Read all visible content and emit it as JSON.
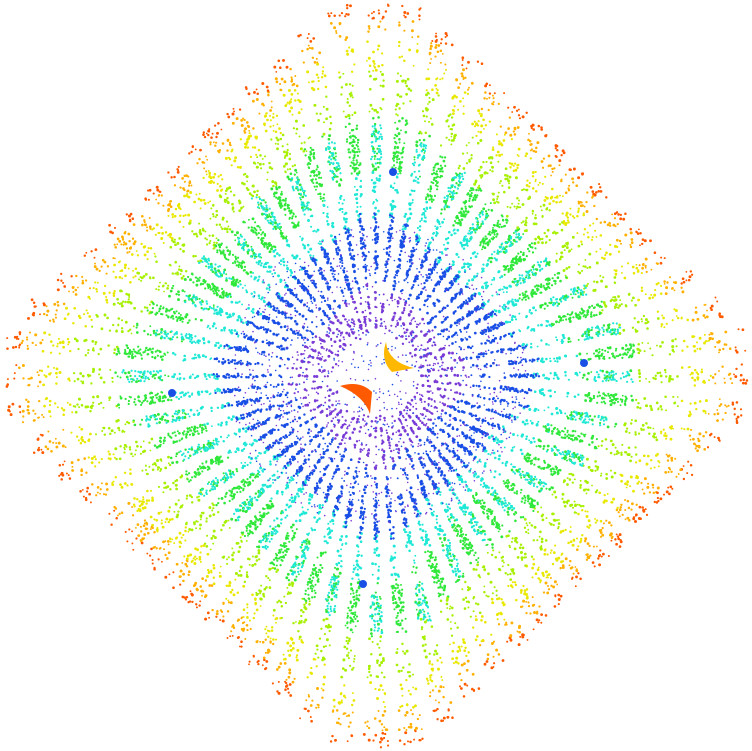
{
  "image": {
    "background_color": "#ffffff",
    "palette": [
      "#ff5a00",
      "#ffb000",
      "#e8e800",
      "#a6f000",
      "#2fe83a",
      "#1fe8d6",
      "#1a4fe6",
      "#7a3cd6"
    ],
    "center_marks": [
      {
        "name": "orange-boomerang",
        "color": "#ff5a00"
      },
      {
        "name": "yellow-boomerang",
        "color": "#ffb800"
      }
    ],
    "blue_dots_color": "#1a4fe6"
  }
}
